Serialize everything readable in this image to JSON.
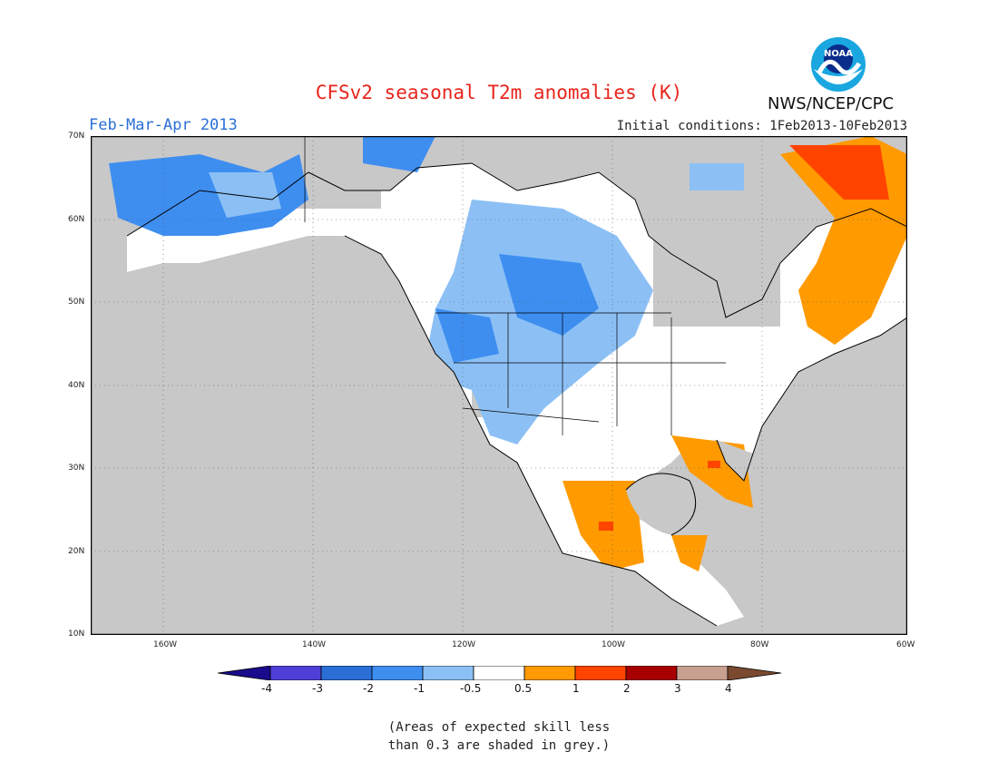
{
  "header": {
    "title": "CFSv2 seasonal T2m anomalies (K)",
    "season": "Feb-Mar-Apr 2013",
    "initial_conditions": "Initial conditions: 1Feb2013-10Feb2013",
    "agency": "NWS/NCEP/CPC",
    "logo_text": "NOAA"
  },
  "map": {
    "lat_labels": [
      "70N",
      "60N",
      "50N",
      "40N",
      "30N",
      "20N",
      "10N"
    ],
    "lon_labels": [
      "160W",
      "140W",
      "120W",
      "100W",
      "80W",
      "60W"
    ],
    "background_color": "#c8c8c8",
    "land_outline_color": "#000000"
  },
  "colorbar": {
    "labels": [
      "-4",
      "-3",
      "-2",
      "-1",
      "-0.5",
      "0.5",
      "1",
      "2",
      "3",
      "4"
    ],
    "colors": [
      "#1a0b8c",
      "#4f3fd8",
      "#2b6fd6",
      "#3e8ef0",
      "#8cc0f5",
      "#ffffff",
      "#ff9a00",
      "#ff4400",
      "#a80000",
      "#c8a090",
      "#7a4a30"
    ]
  },
  "footnote": {
    "line1": "(Areas of expected skill less",
    "line2": "than 0.3 are shaded in grey.)"
  }
}
